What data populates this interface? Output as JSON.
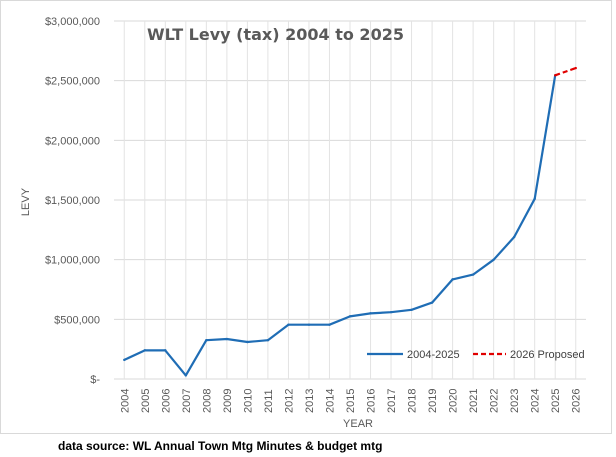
{
  "chart_data": {
    "type": "line",
    "title": "WLT Levy (tax) 2004 to 2025",
    "xlabel": "YEAR",
    "ylabel": "LEVY",
    "ylim": [
      0,
      3000000
    ],
    "y_ticks": [
      {
        "value": 0,
        "label": "$-"
      },
      {
        "value": 500000,
        "label": "$500,000"
      },
      {
        "value": 1000000,
        "label": "$1,000,000"
      },
      {
        "value": 1500000,
        "label": "$1,500,000"
      },
      {
        "value": 2000000,
        "label": "$2,000,000"
      },
      {
        "value": 2500000,
        "label": "$2,500,000"
      },
      {
        "value": 3000000,
        "label": "$3,000,000"
      }
    ],
    "categories": [
      "2004",
      "2005",
      "2006",
      "2007",
      "2008",
      "2009",
      "2010",
      "2011",
      "2012",
      "2013",
      "2014",
      "2015",
      "2016",
      "2017",
      "2018",
      "2019",
      "2020",
      "2021",
      "2022",
      "2023",
      "2024",
      "2025",
      "2026"
    ],
    "grid": true,
    "legend_position": "bottom-right",
    "series": [
      {
        "name": "2004-2025",
        "color": "#1f6db5",
        "style": "solid",
        "x": [
          "2004",
          "2005",
          "2006",
          "2007",
          "2008",
          "2009",
          "2010",
          "2011",
          "2012",
          "2013",
          "2014",
          "2015",
          "2016",
          "2017",
          "2018",
          "2019",
          "2020",
          "2021",
          "2022",
          "2023",
          "2024",
          "2025"
        ],
        "values": [
          160000,
          240000,
          240000,
          30000,
          325000,
          335000,
          310000,
          325000,
          455000,
          455000,
          455000,
          525000,
          550000,
          560000,
          580000,
          640000,
          835000,
          875000,
          1000000,
          1190000,
          1510000,
          2545000
        ]
      },
      {
        "name": "2026 Proposed",
        "color": "#e00000",
        "style": "dashed",
        "x": [
          "2025",
          "2026"
        ],
        "values": [
          2545000,
          2605000
        ]
      }
    ]
  },
  "source_note": "data source: WL Annual Town Mtg Minutes & budget mtg"
}
